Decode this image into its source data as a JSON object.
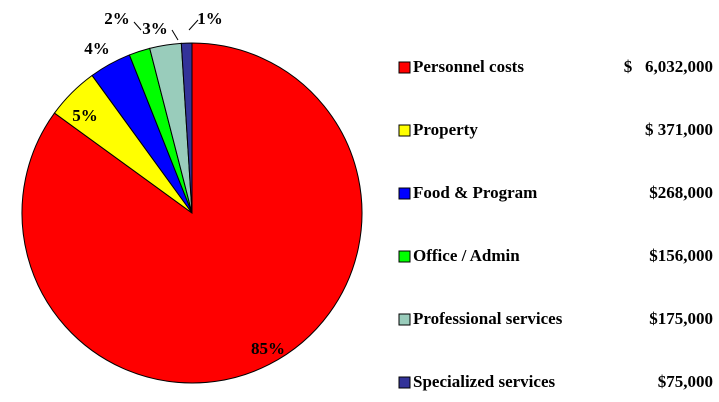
{
  "chart_data": {
    "type": "pie",
    "categories": [
      "Personnel costs",
      "Property",
      "Food & Program",
      "Office / Admin",
      "Professional services",
      "Specialized services"
    ],
    "values": [
      85,
      5,
      4,
      2,
      3,
      1
    ],
    "value_labels": [
      "85%",
      "5%",
      "4%",
      "2%",
      "3%",
      "1%"
    ],
    "colors": [
      "#ff0000",
      "#ffff00",
      "#0000ff",
      "#00ff00",
      "#99ccbb",
      "#333399"
    ],
    "legend_amounts": [
      "$   6,032,000",
      "$ 371,000",
      "$268,000",
      "$156,000",
      "$175,000",
      "$75,000"
    ],
    "legend": "right"
  }
}
